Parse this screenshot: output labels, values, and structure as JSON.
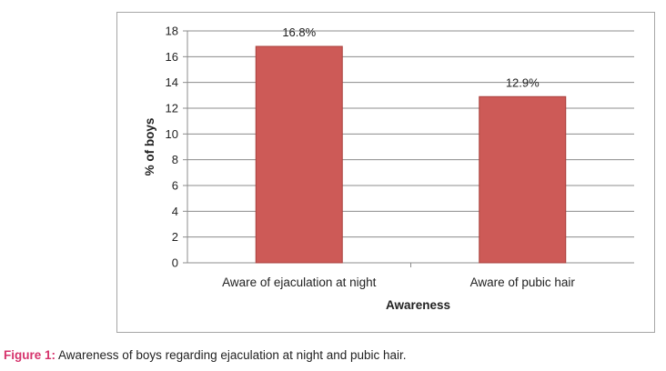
{
  "chart_data": {
    "type": "bar",
    "categories": [
      "Aware of ejaculation at night",
      "Aware of pubic hair"
    ],
    "values": [
      16.8,
      12.9
    ],
    "data_labels": [
      "16.8%",
      "12.9%"
    ],
    "xlabel": "Awareness",
    "ylabel": "% of boys",
    "ylim": [
      0,
      18
    ],
    "yticks": [
      0,
      2,
      4,
      6,
      8,
      10,
      12,
      14,
      16,
      18
    ],
    "grid": true,
    "bar_color": "#cd5a57"
  },
  "caption": {
    "label": "Figure 1:",
    "text": " Awareness of boys regarding ejaculation at night and pubic hair."
  }
}
